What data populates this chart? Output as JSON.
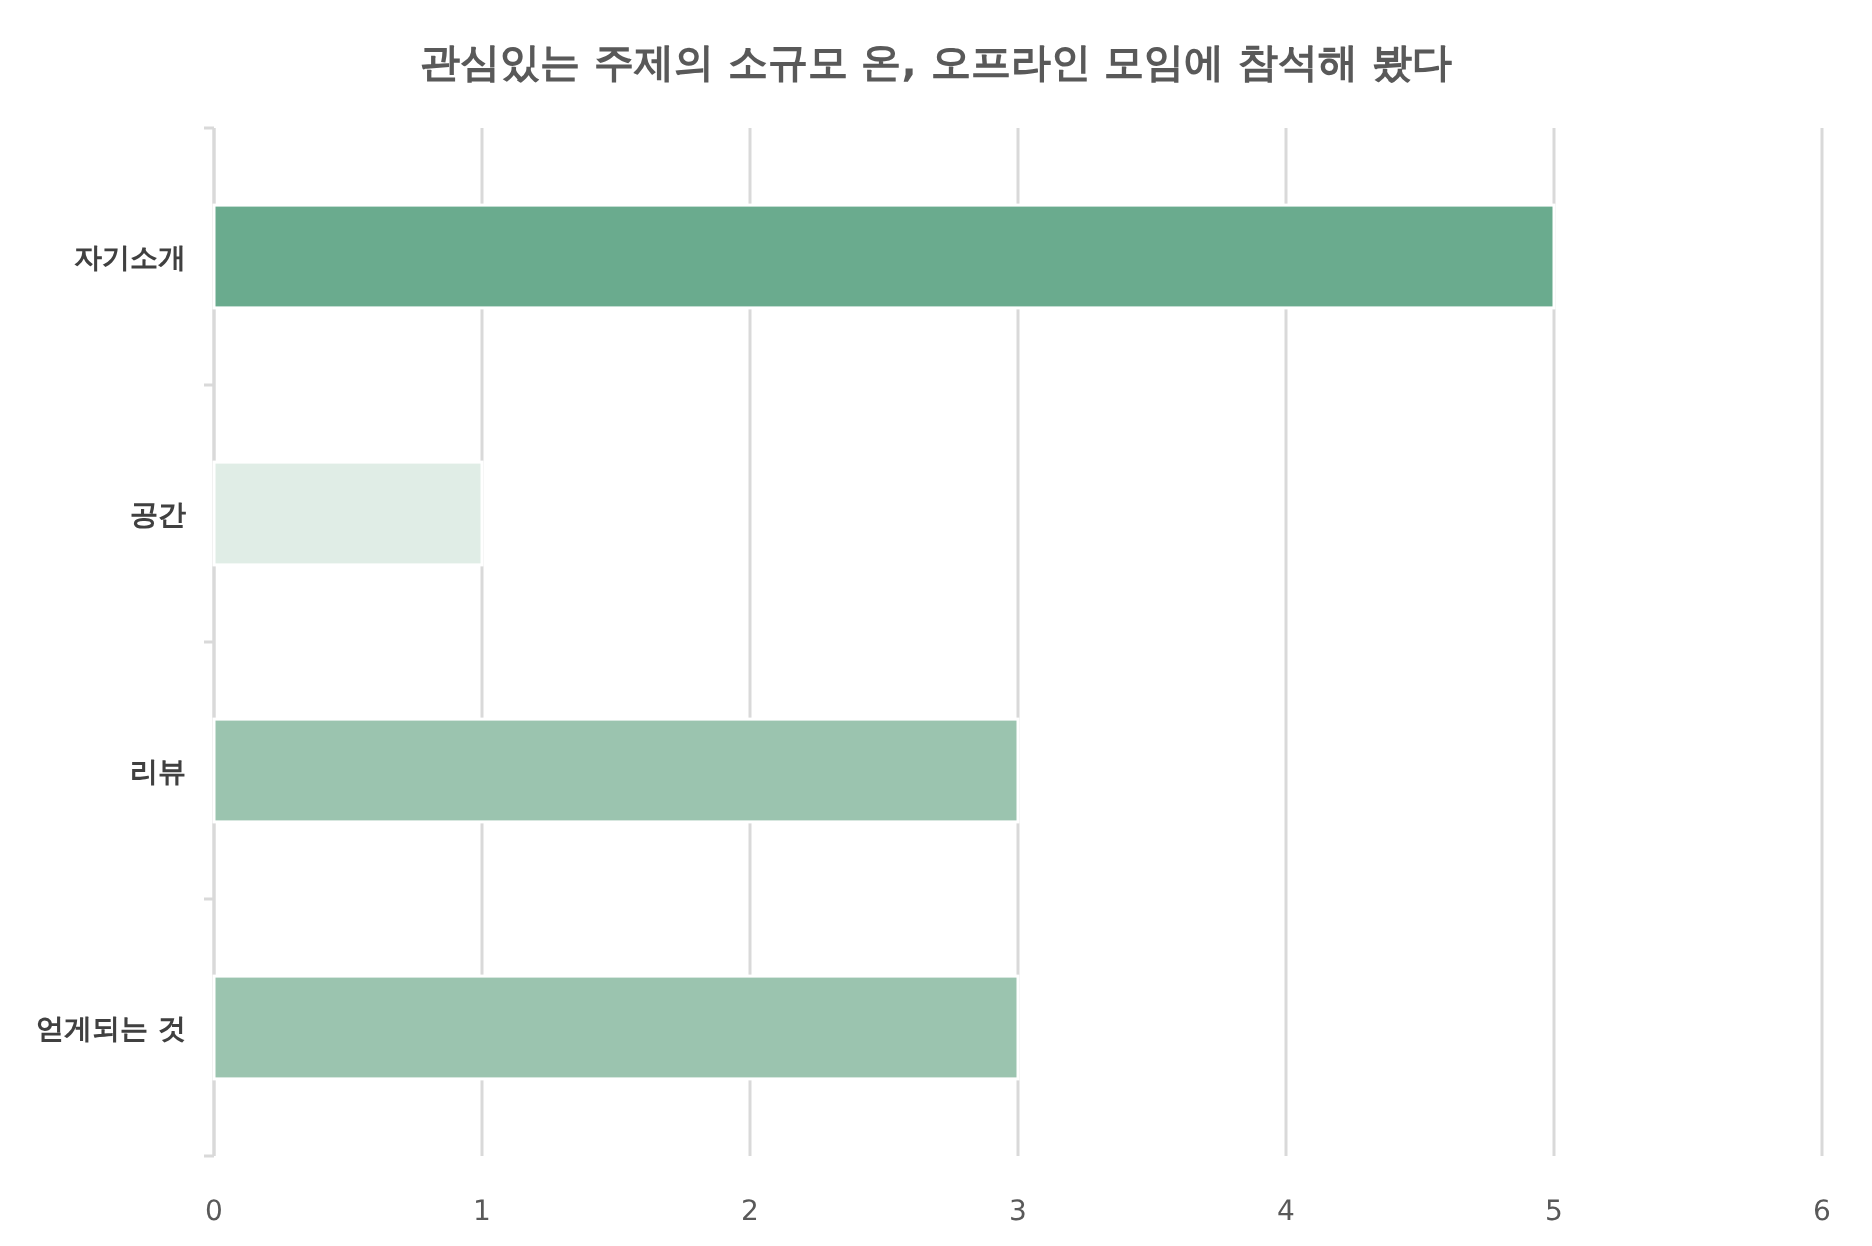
{
  "chart_data": {
    "type": "bar",
    "orientation": "horizontal",
    "title": "관심있는 주제의 소규모 온, 오프라인 모임에 참석해 봤다",
    "categories": [
      "자기소개",
      "공간",
      "리뷰",
      "얻게되는 것"
    ],
    "values": [
      5,
      1,
      3,
      3
    ],
    "colors": [
      "#6aab8e",
      "#e0ede6",
      "#9bc4af",
      "#9bc4af"
    ],
    "xlim": [
      0,
      6
    ],
    "xticks": [
      0,
      1,
      2,
      3,
      4,
      5,
      6
    ],
    "grid": "x"
  }
}
